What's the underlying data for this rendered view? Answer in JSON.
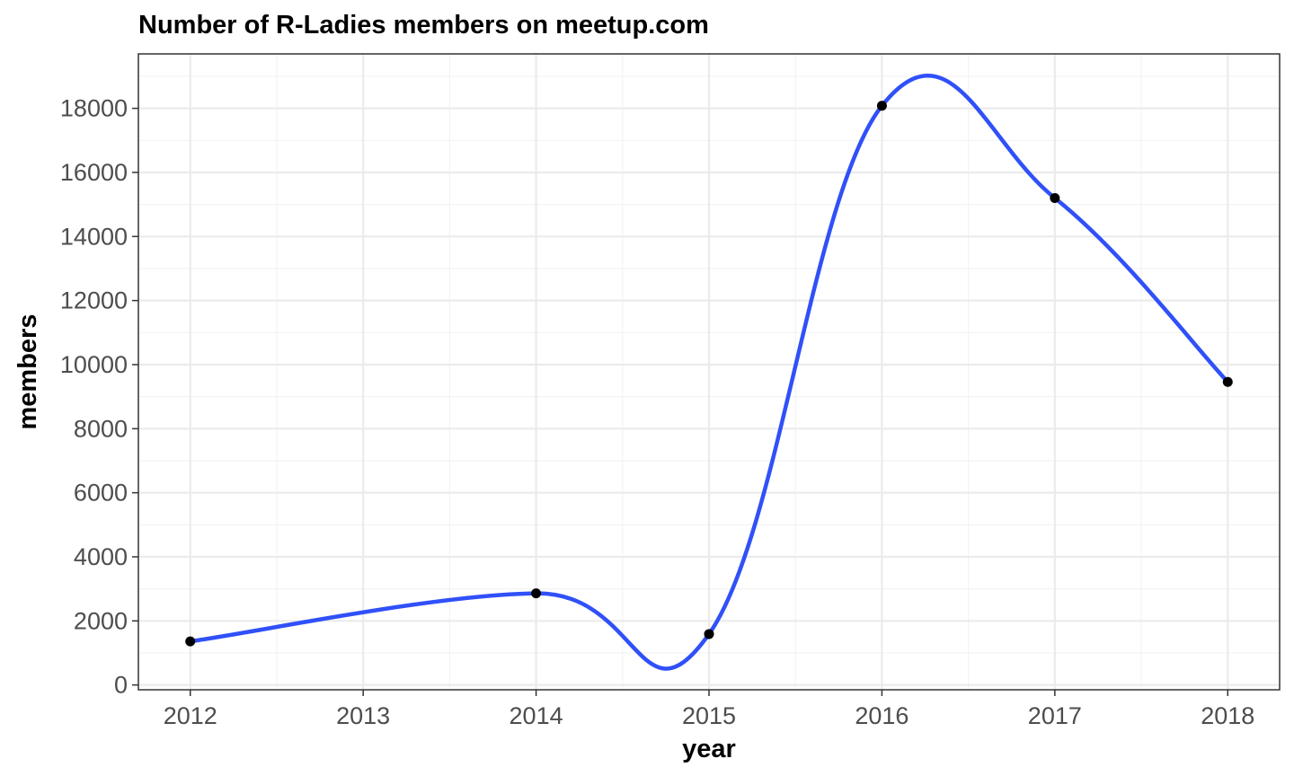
{
  "chart_data": {
    "type": "line",
    "title": "Number of R-Ladies members on meetup.com",
    "xlabel": "year",
    "ylabel": "members",
    "x": [
      2012,
      2014,
      2015,
      2016,
      2017,
      2018
    ],
    "y": [
      1360,
      2860,
      1590,
      18080,
      15200,
      9460
    ],
    "x_ticks": [
      "2012",
      "2013",
      "2014",
      "2015",
      "2016",
      "2017",
      "2018"
    ],
    "y_ticks": [
      "0",
      "2000",
      "4000",
      "6000",
      "8000",
      "10000",
      "12000",
      "14000",
      "16000",
      "18000"
    ],
    "xlim": [
      2011.7,
      2018.3
    ],
    "ylim": [
      -150,
      19700
    ],
    "grid": true,
    "colors": {
      "line": "#3050f8",
      "points": "#000000",
      "grid_major": "#ebebeb",
      "grid_minor": "#f3f3f3",
      "panel_border": "#333333"
    }
  }
}
